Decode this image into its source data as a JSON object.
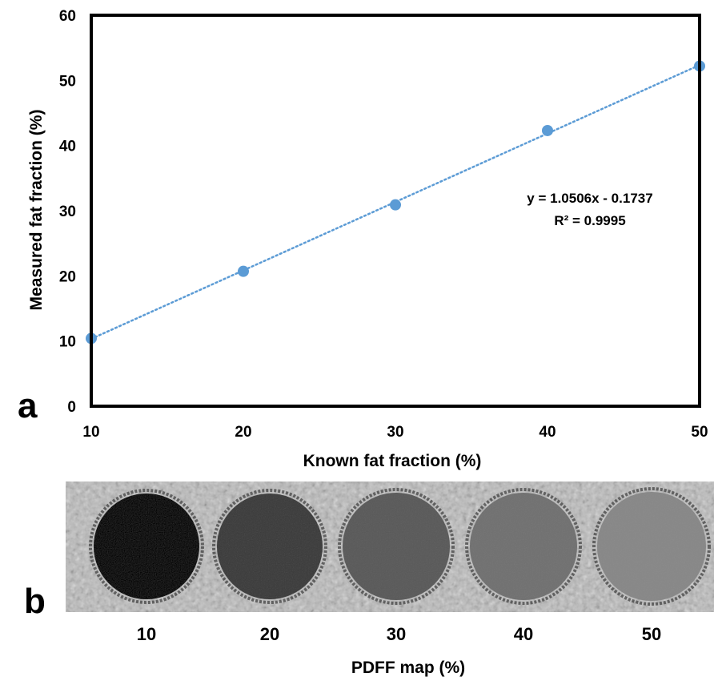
{
  "chart_data": {
    "type": "scatter",
    "xlabel": "Known fat fraction (%)",
    "ylabel": "Measured fat fraction (%)",
    "xlim": [
      10,
      50
    ],
    "ylim": [
      0,
      60
    ],
    "xticks": [
      10,
      20,
      30,
      40,
      50
    ],
    "yticks": [
      0,
      10,
      20,
      30,
      40,
      50,
      60
    ],
    "grid": false,
    "series": [
      {
        "x": [
          10,
          20,
          30,
          40,
          50
        ],
        "y": [
          10.4,
          20.7,
          30.9,
          42.3,
          52.2
        ],
        "color": "#5b9bd5"
      }
    ],
    "trendline": {
      "type": "linear",
      "slope": 1.0506,
      "intercept": -0.1737,
      "style": "dotted",
      "color": "#5b9bd5",
      "equation": "y = 1.0506x - 0.1737",
      "r_squared": "R² = 0.9995"
    },
    "panel_label": "a"
  },
  "phantom": {
    "panel_label": "b",
    "labels": [
      "10",
      "20",
      "30",
      "40",
      "50"
    ],
    "xlabel": "PDFF map (%)",
    "vial_gray_levels": [
      "#2a2a2a",
      "#494949",
      "#626262",
      "#777777",
      "#8c8c8c"
    ],
    "background_color": "#b9b9b9"
  }
}
